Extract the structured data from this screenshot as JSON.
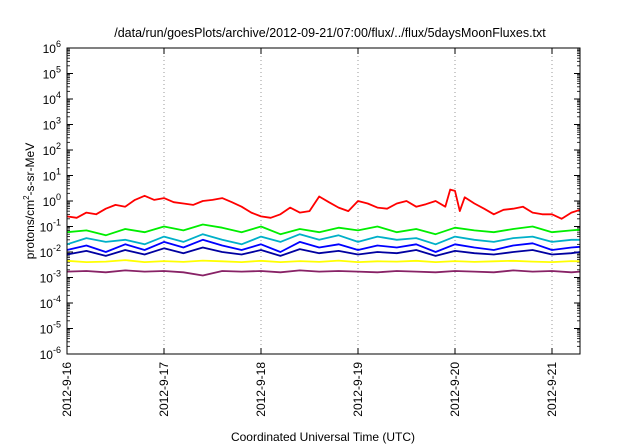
{
  "chart_data": {
    "type": "line",
    "title": "/data/run/goesPlots/archive/2012-09-21/07:00/flux/../flux/5daysMoonFluxes.txt",
    "xlabel": "Coordinated Universal Time (UTC)",
    "ylabel": {
      "prefix": "protons/cm",
      "superscript": "2",
      "suffix": "-s-sr-MeV"
    },
    "yscale": "log",
    "ylim_exponents": [
      -6,
      6
    ],
    "y_tick_labels": [
      {
        "base": "10",
        "exp": "-6"
      },
      {
        "base": "10",
        "exp": "-5"
      },
      {
        "base": "10",
        "exp": "-4"
      },
      {
        "base": "10",
        "exp": "-3"
      },
      {
        "base": "10",
        "exp": "-2"
      },
      {
        "base": "10",
        "exp": "-1"
      },
      {
        "base": "10",
        "exp": "0"
      },
      {
        "base": "10",
        "exp": "1"
      },
      {
        "base": "10",
        "exp": "2"
      },
      {
        "base": "10",
        "exp": "3"
      },
      {
        "base": "10",
        "exp": "4"
      },
      {
        "base": "10",
        "exp": "5"
      },
      {
        "base": "10",
        "exp": "6"
      }
    ],
    "xlim": [
      "2012-09-16",
      "2012-09-21 07:00"
    ],
    "x_tick_labels": [
      "2012-9-16",
      "2012-9-17",
      "2012-9-18",
      "2012-9-19",
      "2012-9-20",
      "2012-9-21"
    ],
    "grid": "vertical-dotted",
    "series": [
      {
        "color": "#ff0000",
        "x_days": [
          0,
          0.1,
          0.2,
          0.3,
          0.4,
          0.5,
          0.6,
          0.7,
          0.8,
          0.9,
          1,
          1.1,
          1.2,
          1.3,
          1.4,
          1.5,
          1.6,
          1.7,
          1.8,
          1.9,
          2,
          2.1,
          2.2,
          2.3,
          2.4,
          2.5,
          2.6,
          2.7,
          2.8,
          2.9,
          3,
          3.1,
          3.2,
          3.3,
          3.4,
          3.5,
          3.6,
          3.7,
          3.8,
          3.9,
          3.95,
          4,
          4.05,
          4.1,
          4.2,
          4.3,
          4.4,
          4.5,
          4.6,
          4.7,
          4.8,
          4.9,
          5,
          5.1,
          5.2,
          5.29
        ],
        "values": [
          0.25,
          0.22,
          0.35,
          0.3,
          0.5,
          0.7,
          0.6,
          1.1,
          1.6,
          1.1,
          1.3,
          0.9,
          0.8,
          0.7,
          1.0,
          1.1,
          1.3,
          0.9,
          0.6,
          0.35,
          0.25,
          0.22,
          0.3,
          0.55,
          0.35,
          0.4,
          1.5,
          0.9,
          0.55,
          0.4,
          1.0,
          0.8,
          0.55,
          0.5,
          0.8,
          1.0,
          0.6,
          0.75,
          1.0,
          0.6,
          2.8,
          2.5,
          0.4,
          1.4,
          0.8,
          0.5,
          0.3,
          0.45,
          0.5,
          0.6,
          0.35,
          0.3,
          0.3,
          0.2,
          0.35,
          0.45
        ]
      },
      {
        "color": "#00ee00",
        "x_days": [
          0,
          0.2,
          0.4,
          0.6,
          0.8,
          1,
          1.2,
          1.4,
          1.6,
          1.8,
          2,
          2.2,
          2.4,
          2.6,
          2.8,
          3,
          3.2,
          3.4,
          3.6,
          3.8,
          4,
          4.2,
          4.4,
          4.6,
          4.8,
          5,
          5.2,
          5.29
        ],
        "values": [
          0.06,
          0.07,
          0.045,
          0.08,
          0.06,
          0.1,
          0.07,
          0.12,
          0.09,
          0.06,
          0.1,
          0.05,
          0.08,
          0.06,
          0.09,
          0.07,
          0.1,
          0.06,
          0.08,
          0.05,
          0.09,
          0.07,
          0.06,
          0.08,
          0.1,
          0.06,
          0.07,
          0.075
        ]
      },
      {
        "color": "#00b0c8",
        "x_days": [
          0,
          0.2,
          0.4,
          0.6,
          0.8,
          1,
          1.2,
          1.4,
          1.6,
          1.8,
          2,
          2.2,
          2.4,
          2.6,
          2.8,
          3,
          3.2,
          3.4,
          3.6,
          3.8,
          4,
          4.2,
          4.4,
          4.6,
          4.8,
          5,
          5.2,
          5.29
        ],
        "values": [
          0.02,
          0.035,
          0.025,
          0.03,
          0.02,
          0.04,
          0.025,
          0.05,
          0.03,
          0.02,
          0.04,
          0.025,
          0.05,
          0.03,
          0.045,
          0.025,
          0.04,
          0.03,
          0.035,
          0.02,
          0.04,
          0.03,
          0.025,
          0.035,
          0.04,
          0.025,
          0.03,
          0.03
        ]
      },
      {
        "color": "#0000ff",
        "x_days": [
          0,
          0.2,
          0.4,
          0.6,
          0.8,
          1,
          1.2,
          1.4,
          1.6,
          1.8,
          2,
          2.2,
          2.4,
          2.6,
          2.8,
          3,
          3.2,
          3.4,
          3.6,
          3.8,
          4,
          4.2,
          4.4,
          4.6,
          4.8,
          5,
          5.2,
          5.29
        ],
        "values": [
          0.012,
          0.018,
          0.01,
          0.02,
          0.012,
          0.025,
          0.015,
          0.03,
          0.018,
          0.012,
          0.02,
          0.01,
          0.025,
          0.015,
          0.02,
          0.012,
          0.018,
          0.015,
          0.02,
          0.01,
          0.02,
          0.015,
          0.012,
          0.018,
          0.022,
          0.012,
          0.015,
          0.016
        ]
      },
      {
        "color": "#0000a0",
        "x_days": [
          0,
          0.2,
          0.4,
          0.6,
          0.8,
          1,
          1.2,
          1.4,
          1.6,
          1.8,
          2,
          2.2,
          2.4,
          2.6,
          2.8,
          3,
          3.2,
          3.4,
          3.6,
          3.8,
          4,
          4.2,
          4.4,
          4.6,
          4.8,
          5,
          5.2,
          5.29
        ],
        "values": [
          0.008,
          0.011,
          0.007,
          0.012,
          0.008,
          0.014,
          0.009,
          0.015,
          0.01,
          0.008,
          0.012,
          0.007,
          0.013,
          0.009,
          0.011,
          0.008,
          0.01,
          0.009,
          0.012,
          0.007,
          0.011,
          0.009,
          0.008,
          0.01,
          0.012,
          0.008,
          0.009,
          0.01
        ]
      },
      {
        "color": "#ffff00",
        "x_days": [
          0,
          0.2,
          0.4,
          0.6,
          0.8,
          1,
          1.2,
          1.4,
          1.6,
          1.8,
          2,
          2.2,
          2.4,
          2.6,
          2.8,
          3,
          3.2,
          3.4,
          3.6,
          3.8,
          4,
          4.2,
          4.4,
          4.6,
          4.8,
          5,
          5.2,
          5.29
        ],
        "values": [
          0.0045,
          0.004,
          0.0042,
          0.0048,
          0.004,
          0.0044,
          0.0041,
          0.0046,
          0.0043,
          0.004,
          0.0045,
          0.004,
          0.0044,
          0.0041,
          0.0046,
          0.004,
          0.0043,
          0.0042,
          0.0045,
          0.004,
          0.0044,
          0.0041,
          0.0043,
          0.0045,
          0.0042,
          0.004,
          0.0044,
          0.0043
        ]
      },
      {
        "color": "#882266",
        "x_days": [
          0,
          0.2,
          0.4,
          0.6,
          0.8,
          1,
          1.2,
          1.4,
          1.6,
          1.8,
          2,
          2.2,
          2.4,
          2.6,
          2.8,
          3,
          3.2,
          3.4,
          3.6,
          3.8,
          4,
          4.2,
          4.4,
          4.6,
          4.8,
          5,
          5.2,
          5.29
        ],
        "values": [
          0.0017,
          0.0018,
          0.0016,
          0.0019,
          0.0017,
          0.0018,
          0.0016,
          0.0012,
          0.0018,
          0.0017,
          0.0018,
          0.0016,
          0.0019,
          0.0017,
          0.0018,
          0.0017,
          0.0016,
          0.0018,
          0.0017,
          0.0016,
          0.0018,
          0.0017,
          0.0016,
          0.0019,
          0.0017,
          0.0018,
          0.0016,
          0.0017
        ]
      }
    ]
  }
}
